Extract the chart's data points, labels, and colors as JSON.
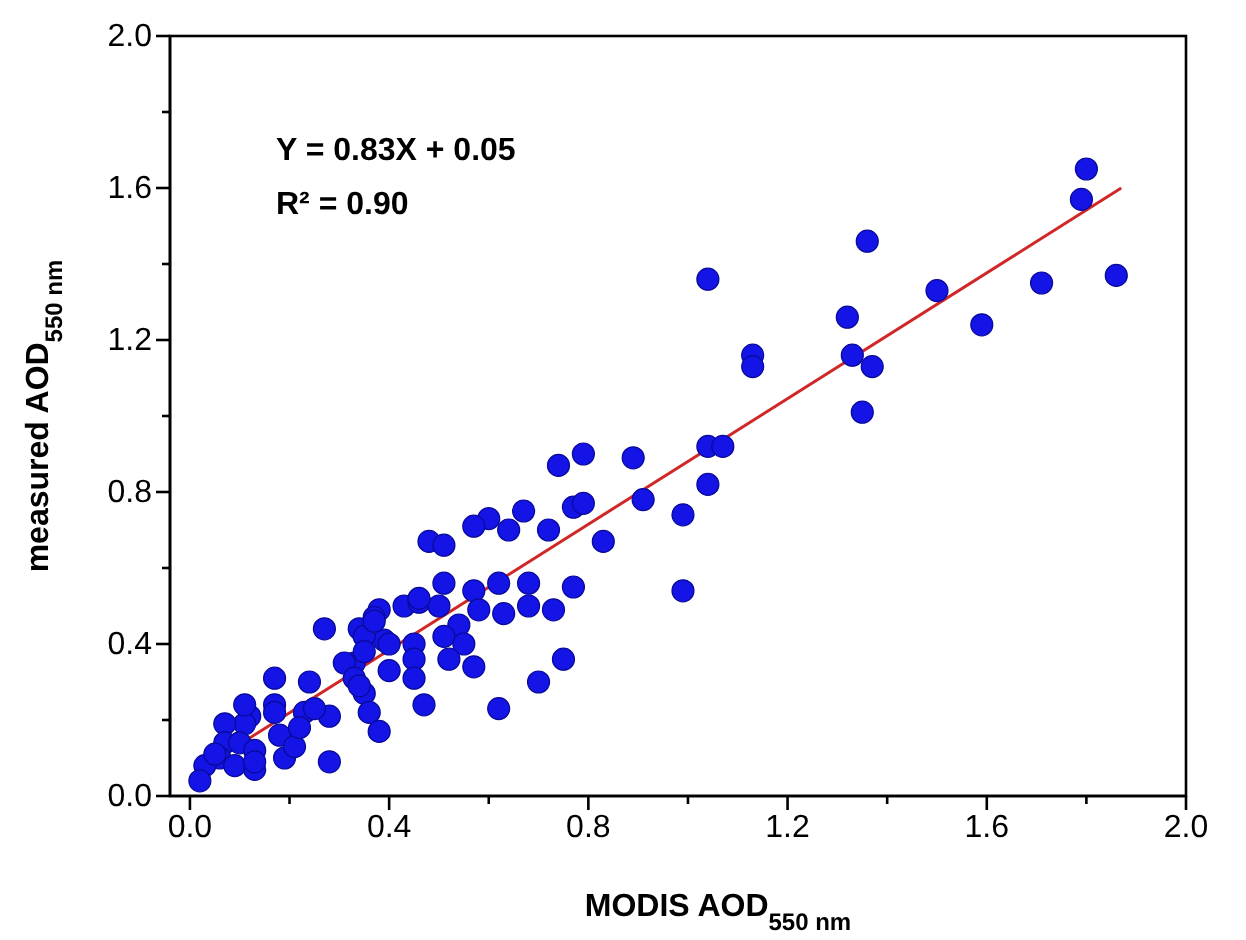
{
  "chart_data": {
    "type": "scatter",
    "xlabel": "MODIS AOD$_{550 nm}$",
    "ylabel": "measured AOD$_{550 nm}$",
    "annotations": [
      "Y = 0.83X + 0.05",
      "R² = 0.90"
    ],
    "xlim": [
      -0.04,
      2.0
    ],
    "ylim": [
      0,
      2.0
    ],
    "xticks": [
      {
        "value": 0,
        "label": "0.0"
      },
      {
        "value": 0.2,
        "label": null
      },
      {
        "value": 0.4,
        "label": "0.4"
      },
      {
        "value": 0.6,
        "label": null
      },
      {
        "value": 0.8,
        "label": "0.8"
      },
      {
        "value": 1.0,
        "label": null
      },
      {
        "value": 1.2,
        "label": "1.2"
      },
      {
        "value": 1.4,
        "label": null
      },
      {
        "value": 1.6,
        "label": "1.6"
      },
      {
        "value": 1.8,
        "label": null
      },
      {
        "value": 2.0,
        "label": "2.0"
      }
    ],
    "yticks": [
      {
        "value": 0,
        "label": "0.0"
      },
      {
        "value": 0.2,
        "label": null
      },
      {
        "value": 0.4,
        "label": "0.4"
      },
      {
        "value": 0.6,
        "label": null
      },
      {
        "value": 0.8,
        "label": "0.8"
      },
      {
        "value": 1.0,
        "label": null
      },
      {
        "value": 1.2,
        "label": "1.2"
      },
      {
        "value": 1.4,
        "label": null
      },
      {
        "value": 1.6,
        "label": "1.6"
      },
      {
        "value": 1.8,
        "label": null
      },
      {
        "value": 2.0,
        "label": "2.0"
      }
    ],
    "grid": false,
    "series": [
      {
        "marker": "circle",
        "color": "#1414e6",
        "x": [
          1.8,
          1.79,
          1.86,
          1.71,
          1.59,
          1.5,
          1.36,
          1.32,
          1.33,
          1.37,
          1.35,
          1.04,
          1.13,
          1.13,
          1.04,
          1.07,
          1.04,
          0.99,
          0.99,
          0.74,
          0.79,
          0.89,
          0.91,
          0.77,
          0.79,
          0.83,
          0.72,
          0.67,
          0.64,
          0.6,
          0.57,
          0.48,
          0.51,
          0.51,
          0.57,
          0.62,
          0.68,
          0.77,
          0.58,
          0.63,
          0.68,
          0.73,
          0.43,
          0.46,
          0.5,
          0.38,
          0.37,
          0.34,
          0.54,
          0.39,
          0.45,
          0.51,
          0.55,
          0.45,
          0.52,
          0.57,
          0.4,
          0.45,
          0.75,
          0.7,
          0.47,
          0.62,
          0.35,
          0.36,
          0.38,
          0.33,
          0.27,
          0.17,
          0.24,
          0.31,
          0.35,
          0.37,
          0.4,
          0.46,
          0.28,
          0.28,
          0.17,
          0.17,
          0.18,
          0.19,
          0.21,
          0.23,
          0.25,
          0.22,
          0.12,
          0.11,
          0.07,
          0.07,
          0.1,
          0.13,
          0.06,
          0.09,
          0.13,
          0.03,
          0.05,
          0.02,
          0.13,
          0.11,
          0.33,
          0.34,
          0.35
        ],
        "values": [
          1.65,
          1.57,
          1.37,
          1.35,
          1.24,
          1.33,
          1.46,
          1.26,
          1.16,
          1.13,
          1.01,
          1.36,
          1.16,
          1.13,
          0.92,
          0.92,
          0.82,
          0.74,
          0.54,
          0.87,
          0.9,
          0.89,
          0.78,
          0.76,
          0.77,
          0.67,
          0.7,
          0.75,
          0.7,
          0.73,
          0.71,
          0.67,
          0.66,
          0.56,
          0.54,
          0.56,
          0.56,
          0.55,
          0.49,
          0.48,
          0.5,
          0.49,
          0.5,
          0.51,
          0.5,
          0.49,
          0.47,
          0.44,
          0.45,
          0.41,
          0.4,
          0.42,
          0.4,
          0.36,
          0.36,
          0.34,
          0.33,
          0.31,
          0.36,
          0.3,
          0.24,
          0.23,
          0.27,
          0.22,
          0.17,
          0.35,
          0.44,
          0.31,
          0.3,
          0.35,
          0.42,
          0.46,
          0.4,
          0.52,
          0.21,
          0.09,
          0.24,
          0.22,
          0.16,
          0.1,
          0.13,
          0.22,
          0.23,
          0.18,
          0.21,
          0.19,
          0.19,
          0.14,
          0.14,
          0.12,
          0.1,
          0.08,
          0.07,
          0.08,
          0.11,
          0.04,
          0.09,
          0.24,
          0.31,
          0.29,
          0.38
        ]
      },
      {
        "type": "line",
        "marker": "none",
        "color": "#d02828",
        "x": [
          0.02,
          1.87
        ],
        "values": [
          0.07,
          1.6
        ]
      }
    ]
  }
}
